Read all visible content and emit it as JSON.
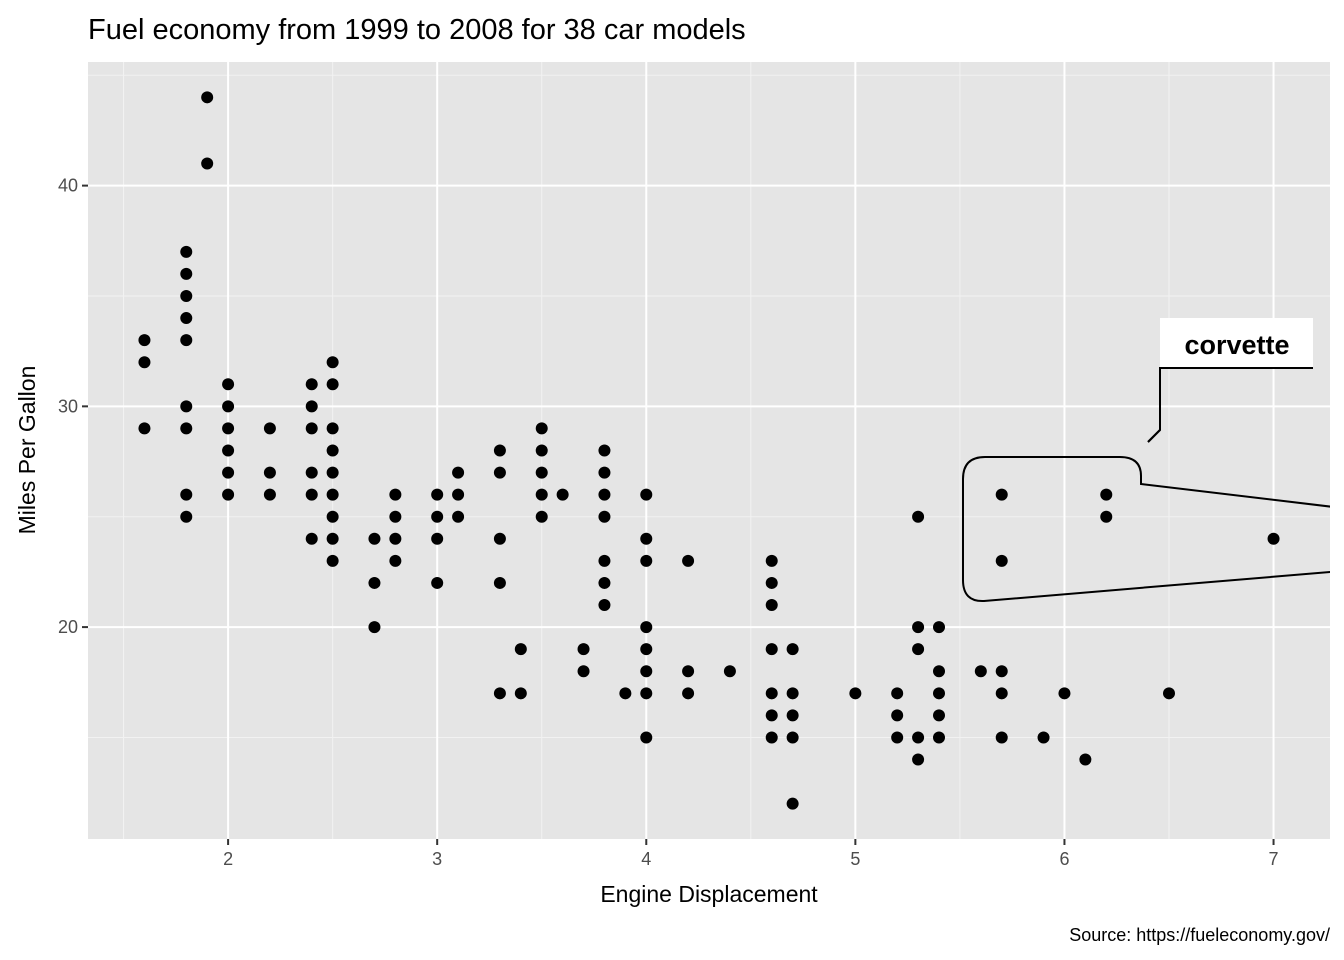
{
  "chart_data": {
    "type": "scatter",
    "title": "Fuel economy from 1999 to 2008 for 38 car models",
    "xlabel": "Engine Displacement",
    "ylabel": "Miles Per Gallon",
    "caption": "Source: https://fueleconomy.gov/",
    "xlim": [
      1.33,
      7.27
    ],
    "ylim": [
      10.4,
      45.6
    ],
    "xticks": [
      2,
      3,
      4,
      5,
      6,
      7
    ],
    "xtick_labels": [
      "2",
      "3",
      "4",
      "5",
      "6",
      "7"
    ],
    "yticks": [
      20,
      30,
      40
    ],
    "ytick_labels": [
      "20",
      "30",
      "40"
    ],
    "grid": true,
    "point_color": "#000000",
    "panel_background": "#e5e5e5",
    "annotation": {
      "label": "corvette",
      "points": [
        [
          5.7,
          26
        ],
        [
          5.7,
          23
        ],
        [
          6.2,
          26
        ],
        [
          6.2,
          25
        ],
        [
          7.0,
          24
        ]
      ]
    },
    "points": [
      [
        1.6,
        33
      ],
      [
        1.6,
        32
      ],
      [
        1.6,
        29
      ],
      [
        1.8,
        37
      ],
      [
        1.8,
        36
      ],
      [
        1.8,
        35
      ],
      [
        1.8,
        34
      ],
      [
        1.8,
        33
      ],
      [
        1.8,
        30
      ],
      [
        1.8,
        29
      ],
      [
        1.8,
        26
      ],
      [
        1.8,
        25
      ],
      [
        1.9,
        44
      ],
      [
        1.9,
        41
      ],
      [
        2.0,
        31
      ],
      [
        2.0,
        30
      ],
      [
        2.0,
        29
      ],
      [
        2.0,
        28
      ],
      [
        2.0,
        27
      ],
      [
        2.0,
        26
      ],
      [
        2.2,
        29
      ],
      [
        2.2,
        27
      ],
      [
        2.2,
        26
      ],
      [
        2.4,
        31
      ],
      [
        2.4,
        30
      ],
      [
        2.4,
        29
      ],
      [
        2.4,
        27
      ],
      [
        2.4,
        26
      ],
      [
        2.4,
        24
      ],
      [
        2.5,
        32
      ],
      [
        2.5,
        31
      ],
      [
        2.5,
        29
      ],
      [
        2.5,
        28
      ],
      [
        2.5,
        27
      ],
      [
        2.5,
        26
      ],
      [
        2.5,
        25
      ],
      [
        2.5,
        24
      ],
      [
        2.5,
        23
      ],
      [
        2.7,
        24
      ],
      [
        2.7,
        22
      ],
      [
        2.7,
        20
      ],
      [
        2.8,
        26
      ],
      [
        2.8,
        25
      ],
      [
        2.8,
        24
      ],
      [
        2.8,
        23
      ],
      [
        3.0,
        26
      ],
      [
        3.0,
        25
      ],
      [
        3.0,
        24
      ],
      [
        3.0,
        22
      ],
      [
        3.1,
        27
      ],
      [
        3.1,
        26
      ],
      [
        3.1,
        25
      ],
      [
        3.3,
        28
      ],
      [
        3.3,
        27
      ],
      [
        3.3,
        24
      ],
      [
        3.3,
        22
      ],
      [
        3.3,
        17
      ],
      [
        3.4,
        19
      ],
      [
        3.4,
        17
      ],
      [
        3.5,
        29
      ],
      [
        3.5,
        28
      ],
      [
        3.5,
        27
      ],
      [
        3.5,
        26
      ],
      [
        3.5,
        25
      ],
      [
        3.6,
        26
      ],
      [
        3.7,
        19
      ],
      [
        3.7,
        18
      ],
      [
        3.8,
        28
      ],
      [
        3.8,
        27
      ],
      [
        3.8,
        26
      ],
      [
        3.8,
        25
      ],
      [
        3.8,
        23
      ],
      [
        3.8,
        22
      ],
      [
        3.8,
        21
      ],
      [
        3.9,
        17
      ],
      [
        4.0,
        26
      ],
      [
        4.0,
        24
      ],
      [
        4.0,
        23
      ],
      [
        4.0,
        20
      ],
      [
        4.0,
        19
      ],
      [
        4.0,
        18
      ],
      [
        4.0,
        17
      ],
      [
        4.0,
        15
      ],
      [
        4.2,
        23
      ],
      [
        4.2,
        18
      ],
      [
        4.2,
        17
      ],
      [
        4.4,
        18
      ],
      [
        4.6,
        23
      ],
      [
        4.6,
        22
      ],
      [
        4.6,
        21
      ],
      [
        4.6,
        19
      ],
      [
        4.6,
        17
      ],
      [
        4.6,
        16
      ],
      [
        4.6,
        15
      ],
      [
        4.7,
        19
      ],
      [
        4.7,
        17
      ],
      [
        4.7,
        16
      ],
      [
        4.7,
        15
      ],
      [
        4.7,
        12
      ],
      [
        5.0,
        17
      ],
      [
        5.2,
        17
      ],
      [
        5.2,
        16
      ],
      [
        5.2,
        15
      ],
      [
        5.3,
        25
      ],
      [
        5.3,
        20
      ],
      [
        5.3,
        19
      ],
      [
        5.3,
        15
      ],
      [
        5.3,
        14
      ],
      [
        5.4,
        20
      ],
      [
        5.4,
        18
      ],
      [
        5.4,
        17
      ],
      [
        5.4,
        16
      ],
      [
        5.4,
        15
      ],
      [
        5.6,
        18
      ],
      [
        5.7,
        26
      ],
      [
        5.7,
        23
      ],
      [
        5.7,
        18
      ],
      [
        5.7,
        17
      ],
      [
        5.7,
        15
      ],
      [
        5.9,
        15
      ],
      [
        6.0,
        17
      ],
      [
        6.1,
        14
      ],
      [
        6.2,
        26
      ],
      [
        6.2,
        25
      ],
      [
        6.5,
        17
      ],
      [
        7.0,
        24
      ]
    ]
  }
}
